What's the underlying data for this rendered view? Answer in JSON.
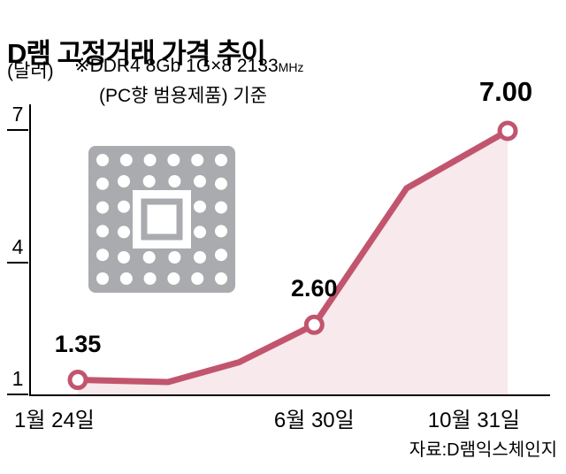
{
  "title": "D램 고정거래 가격 추이",
  "unit_label": "(달러)",
  "note": {
    "line1_prefix": "※DDR4 8Gb 1G×8 2133",
    "line1_unit": "MHz",
    "line2": "(PC향 범용제품) 기준"
  },
  "source": "자료:D램익스체인지",
  "colors": {
    "line": "#c2556e",
    "area": "#f7e9ec",
    "axis": "#000000",
    "chip": "#a9abae"
  },
  "chart_data": {
    "type": "line",
    "title": "D램 고정거래 가격 추이",
    "ylabel": "(달러)",
    "ylim": [
      1,
      7
    ],
    "yticks": [
      7,
      4,
      1
    ],
    "x_tick_labels": [
      "1월 24일",
      "6월 30일",
      "10월 31일"
    ],
    "points": [
      {
        "f": 0.0,
        "value": 1.35,
        "label": "1.35",
        "marker": true,
        "tick": "1월 24일"
      },
      {
        "f": 0.21,
        "value": 1.3,
        "marker": false
      },
      {
        "f": 0.375,
        "value": 1.75,
        "marker": false
      },
      {
        "f": 0.55,
        "value": 2.6,
        "label": "2.60",
        "marker": true,
        "tick": "6월 30일"
      },
      {
        "f": 0.765,
        "value": 5.7,
        "marker": false
      },
      {
        "f": 1.0,
        "value": 7.0,
        "label": "7.00",
        "marker": true,
        "big": true,
        "tick": "10월 31일"
      }
    ]
  }
}
